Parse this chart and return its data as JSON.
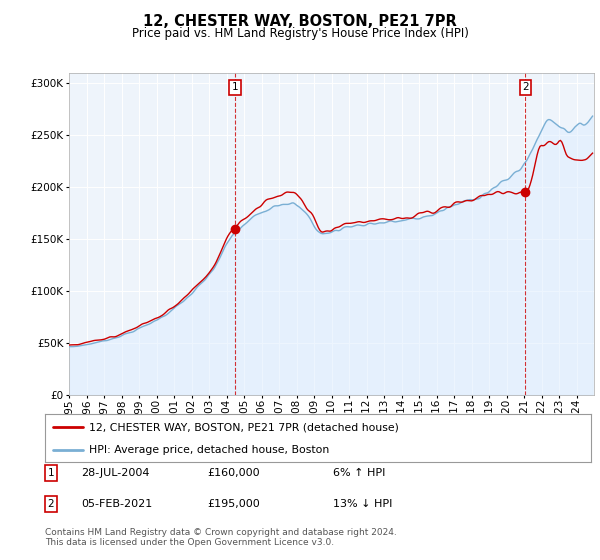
{
  "title": "12, CHESTER WAY, BOSTON, PE21 7PR",
  "subtitle": "Price paid vs. HM Land Registry's House Price Index (HPI)",
  "yticks": [
    0,
    50000,
    100000,
    150000,
    200000,
    250000,
    300000
  ],
  "ylim": [
    0,
    310000
  ],
  "property_color": "#cc0000",
  "hpi_color": "#7aafd4",
  "hpi_fill_color": "#ddeeff",
  "marker1_value": 160000,
  "marker2_value": 195000,
  "legend_line1": "12, CHESTER WAY, BOSTON, PE21 7PR (detached house)",
  "legend_line2": "HPI: Average price, detached house, Boston",
  "table_row1": [
    "1",
    "28-JUL-2004",
    "£160,000",
    "6% ↑ HPI"
  ],
  "table_row2": [
    "2",
    "05-FEB-2021",
    "£195,000",
    "13% ↓ HPI"
  ],
  "footnote": "Contains HM Land Registry data © Crown copyright and database right 2024.\nThis data is licensed under the Open Government Licence v3.0.",
  "background_color": "#ffffff",
  "plot_bg_color": "#eef4fb",
  "grid_color": "#ffffff"
}
